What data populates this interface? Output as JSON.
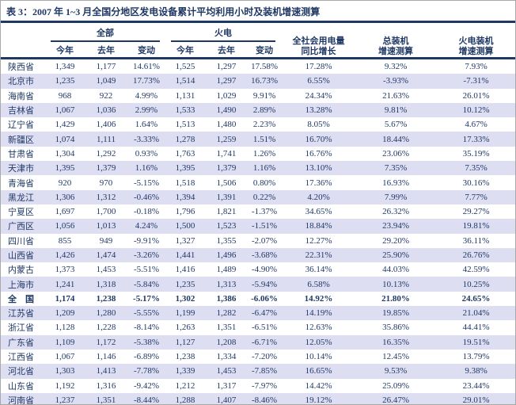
{
  "title": "表 3：2007 年 1~3 月全国分地区发电设备累计平均利用小时及装机增速测算",
  "colors": {
    "navy": "#1f3864",
    "row_alt": "#dedef3",
    "frame_border": "#a8a8a8"
  },
  "table": {
    "col_groups": [
      {
        "label": "全部"
      },
      {
        "label": "火电"
      }
    ],
    "sub_headers": [
      "今年",
      "去年",
      "变动",
      "今年",
      "去年",
      "变动"
    ],
    "tall_headers": [
      {
        "line1": "全社会用电量",
        "line2": "同比增长"
      },
      {
        "line1": "总装机",
        "line2": "增速测算"
      },
      {
        "line1": "火电装机",
        "line2": "增速测算"
      }
    ],
    "rows": [
      {
        "region": "陕西省",
        "bold": false,
        "values": [
          "1,349",
          "1,177",
          "14.61%",
          "1,525",
          "1,297",
          "17.58%",
          "17.28%",
          "9.32%",
          "7.93%"
        ]
      },
      {
        "region": "北京市",
        "bold": false,
        "values": [
          "1,235",
          "1,049",
          "17.73%",
          "1,514",
          "1,297",
          "16.73%",
          "6.55%",
          "-3.93%",
          "-7.31%"
        ]
      },
      {
        "region": "海南省",
        "bold": false,
        "values": [
          "968",
          "922",
          "4.99%",
          "1,131",
          "1,029",
          "9.91%",
          "24.34%",
          "21.63%",
          "26.01%"
        ]
      },
      {
        "region": "吉林省",
        "bold": false,
        "values": [
          "1,067",
          "1,036",
          "2.99%",
          "1,533",
          "1,490",
          "2.89%",
          "13.28%",
          "9.81%",
          "10.12%"
        ]
      },
      {
        "region": "辽宁省",
        "bold": false,
        "values": [
          "1,429",
          "1,406",
          "1.64%",
          "1,513",
          "1,480",
          "2.23%",
          "8.05%",
          "5.67%",
          "4.67%"
        ]
      },
      {
        "region": "新疆区",
        "bold": false,
        "values": [
          "1,074",
          "1,111",
          "-3.33%",
          "1,278",
          "1,259",
          "1.51%",
          "16.70%",
          "18.44%",
          "17.33%"
        ]
      },
      {
        "region": "甘肃省",
        "bold": false,
        "values": [
          "1,304",
          "1,292",
          "0.93%",
          "1,763",
          "1,741",
          "1.26%",
          "16.76%",
          "23.06%",
          "35.19%"
        ]
      },
      {
        "region": "天津市",
        "bold": false,
        "values": [
          "1,395",
          "1,379",
          "1.16%",
          "1,395",
          "1,379",
          "1.16%",
          "13.10%",
          "7.35%",
          "7.35%"
        ]
      },
      {
        "region": "青海省",
        "bold": false,
        "values": [
          "920",
          "970",
          "-5.15%",
          "1,518",
          "1,506",
          "0.80%",
          "17.36%",
          "16.93%",
          "30.16%"
        ]
      },
      {
        "region": "黑龙江",
        "bold": false,
        "values": [
          "1,306",
          "1,312",
          "-0.46%",
          "1,394",
          "1,391",
          "0.22%",
          "4.20%",
          "7.99%",
          "7.77%"
        ]
      },
      {
        "region": "宁夏区",
        "bold": false,
        "values": [
          "1,697",
          "1,700",
          "-0.18%",
          "1,796",
          "1,821",
          "-1.37%",
          "34.65%",
          "26.32%",
          "29.27%"
        ]
      },
      {
        "region": "广西区",
        "bold": false,
        "values": [
          "1,056",
          "1,013",
          "4.24%",
          "1,500",
          "1,523",
          "-1.51%",
          "18.84%",
          "23.94%",
          "19.81%"
        ]
      },
      {
        "region": "四川省",
        "bold": false,
        "values": [
          "855",
          "949",
          "-9.91%",
          "1,327",
          "1,355",
          "-2.07%",
          "12.27%",
          "29.20%",
          "36.11%"
        ]
      },
      {
        "region": "山西省",
        "bold": false,
        "values": [
          "1,426",
          "1,474",
          "-3.26%",
          "1,441",
          "1,496",
          "-3.68%",
          "22.31%",
          "25.90%",
          "26.76%"
        ]
      },
      {
        "region": "内蒙古",
        "bold": false,
        "values": [
          "1,373",
          "1,453",
          "-5.51%",
          "1,416",
          "1,489",
          "-4.90%",
          "36.14%",
          "44.03%",
          "42.59%"
        ]
      },
      {
        "region": "上海市",
        "bold": false,
        "values": [
          "1,241",
          "1,318",
          "-5.84%",
          "1,235",
          "1,313",
          "-5.94%",
          "6.58%",
          "10.13%",
          "10.25%"
        ]
      },
      {
        "region": "全　国",
        "bold": true,
        "values": [
          "1,174",
          "1,238",
          "-5.17%",
          "1,302",
          "1,386",
          "-6.06%",
          "14.92%",
          "21.80%",
          "24.65%"
        ]
      },
      {
        "region": "江苏省",
        "bold": false,
        "values": [
          "1,209",
          "1,280",
          "-5.55%",
          "1,199",
          "1,282",
          "-6.47%",
          "14.19%",
          "19.85%",
          "21.04%"
        ]
      },
      {
        "region": "浙江省",
        "bold": false,
        "values": [
          "1,128",
          "1,228",
          "-8.14%",
          "1,263",
          "1,351",
          "-6.51%",
          "12.63%",
          "35.86%",
          "44.41%"
        ]
      },
      {
        "region": "广东省",
        "bold": false,
        "values": [
          "1,109",
          "1,172",
          "-5.38%",
          "1,127",
          "1,208",
          "-6.71%",
          "12.05%",
          "16.35%",
          "19.51%"
        ]
      },
      {
        "region": "江西省",
        "bold": false,
        "values": [
          "1,067",
          "1,146",
          "-6.89%",
          "1,238",
          "1,334",
          "-7.20%",
          "10.14%",
          "12.45%",
          "13.79%"
        ]
      },
      {
        "region": "河北省",
        "bold": false,
        "values": [
          "1,303",
          "1,413",
          "-7.78%",
          "1,339",
          "1,453",
          "-7.85%",
          "16.65%",
          "9.53%",
          "9.38%"
        ]
      },
      {
        "region": "山东省",
        "bold": false,
        "values": [
          "1,192",
          "1,316",
          "-9.42%",
          "1,212",
          "1,317",
          "-7.97%",
          "14.42%",
          "25.09%",
          "23.44%"
        ]
      },
      {
        "region": "河南省",
        "bold": false,
        "values": [
          "1,237",
          "1,351",
          "-8.44%",
          "1,288",
          "1,407",
          "-8.46%",
          "19.12%",
          "26.47%",
          "29.01%"
        ]
      }
    ]
  }
}
